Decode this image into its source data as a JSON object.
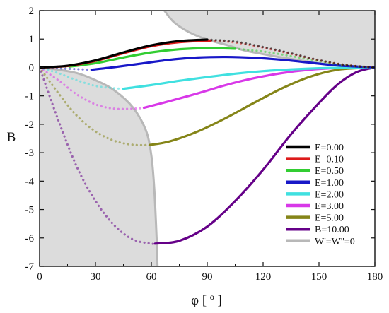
{
  "chart_data": {
    "type": "line",
    "xlabel": "φ [ º ]",
    "ylabel": "B",
    "xlim": [
      0,
      180
    ],
    "ylim": [
      -7,
      2
    ],
    "xticks": [
      0,
      30,
      60,
      90,
      120,
      150,
      180
    ],
    "yticks": [
      -7,
      -6,
      -5,
      -4,
      -3,
      -2,
      -1,
      0,
      1,
      2
    ],
    "grid": false,
    "legend_position": "lower-right",
    "shaded_regions": [
      {
        "name": "upper-right-region",
        "color": "#dcdcdc",
        "boundary": [
          [
            67,
            2
          ],
          [
            72,
            1.6
          ],
          [
            80,
            1.25
          ],
          [
            90,
            0.98
          ],
          [
            100,
            0.8
          ],
          [
            110,
            0.6
          ],
          [
            120,
            0.47
          ],
          [
            130,
            0.35
          ],
          [
            140,
            0.25
          ],
          [
            150,
            0.14
          ],
          [
            160,
            0.07
          ],
          [
            170,
            0.02
          ],
          [
            180,
            0
          ]
        ]
      },
      {
        "name": "lower-left-region",
        "color": "#dcdcdc",
        "boundary": [
          [
            0,
            0
          ],
          [
            10,
            -0.08
          ],
          [
            20,
            -0.2
          ],
          [
            30,
            -0.45
          ],
          [
            40,
            -0.8
          ],
          [
            50,
            -1.4
          ],
          [
            57,
            -2.2
          ],
          [
            60,
            -3.1
          ],
          [
            61.5,
            -4.2
          ],
          [
            62.5,
            -5.5
          ],
          [
            63,
            -6.3
          ],
          [
            63.3,
            -7
          ]
        ]
      }
    ],
    "series": [
      {
        "name": "E=0.00",
        "color": "#000000",
        "solid": [
          [
            0,
            0
          ],
          [
            15,
            0.06
          ],
          [
            30,
            0.25
          ],
          [
            45,
            0.53
          ],
          [
            60,
            0.78
          ],
          [
            75,
            0.93
          ],
          [
            90,
            0.98
          ]
        ],
        "dotted": [
          [
            90,
            0.98
          ],
          [
            105,
            0.91
          ],
          [
            120,
            0.72
          ],
          [
            135,
            0.5
          ],
          [
            150,
            0.26
          ],
          [
            165,
            0.08
          ],
          [
            180,
            0
          ]
        ]
      },
      {
        "name": "E=0.10",
        "color": "#dd1a1a",
        "solid": [
          [
            0,
            0
          ],
          [
            15,
            0.05
          ],
          [
            30,
            0.23
          ],
          [
            45,
            0.5
          ],
          [
            60,
            0.75
          ],
          [
            75,
            0.89
          ],
          [
            92,
            0.95
          ]
        ],
        "dotted": [
          [
            92,
            0.95
          ],
          [
            105,
            0.88
          ],
          [
            120,
            0.7
          ],
          [
            135,
            0.48
          ],
          [
            150,
            0.25
          ],
          [
            165,
            0.08
          ],
          [
            180,
            0
          ]
        ]
      },
      {
        "name": "E=0.50",
        "color": "#32cd32",
        "dotted": [
          [
            0,
            0
          ],
          [
            8,
            0.01
          ],
          [
            16,
            0.03
          ]
        ],
        "solid": [
          [
            16,
            0.03
          ],
          [
            30,
            0.15
          ],
          [
            45,
            0.35
          ],
          [
            60,
            0.53
          ],
          [
            75,
            0.64
          ],
          [
            90,
            0.68
          ],
          [
            105,
            0.66
          ]
        ],
        "dotted2": [
          [
            105,
            0.66
          ],
          [
            120,
            0.56
          ],
          [
            135,
            0.4
          ],
          [
            150,
            0.22
          ],
          [
            165,
            0.07
          ],
          [
            180,
            0
          ]
        ]
      },
      {
        "name": "E=1.00",
        "color": "#1818c8",
        "dotted": [
          [
            0,
            0
          ],
          [
            10,
            -0.03
          ],
          [
            20,
            -0.06
          ],
          [
            28,
            -0.08
          ]
        ],
        "solid": [
          [
            28,
            -0.08
          ],
          [
            40,
            0.01
          ],
          [
            55,
            0.14
          ],
          [
            70,
            0.27
          ],
          [
            85,
            0.35
          ],
          [
            100,
            0.37
          ],
          [
            115,
            0.34
          ],
          [
            130,
            0.27
          ],
          [
            145,
            0.17
          ],
          [
            160,
            0.07
          ],
          [
            180,
            0
          ]
        ]
      },
      {
        "name": "E=2.00",
        "color": "#40e0e0",
        "dotted": [
          [
            0,
            0
          ],
          [
            10,
            -0.2
          ],
          [
            20,
            -0.45
          ],
          [
            30,
            -0.65
          ],
          [
            40,
            -0.73
          ],
          [
            45,
            -0.75
          ]
        ],
        "solid": [
          [
            45,
            -0.75
          ],
          [
            60,
            -0.62
          ],
          [
            75,
            -0.47
          ],
          [
            90,
            -0.34
          ],
          [
            105,
            -0.22
          ],
          [
            120,
            -0.13
          ],
          [
            135,
            -0.07
          ],
          [
            150,
            -0.03
          ],
          [
            165,
            -0.01
          ],
          [
            180,
            0
          ]
        ]
      },
      {
        "name": "E=3.00",
        "color": "#d838e8",
        "dotted": [
          [
            0,
            0
          ],
          [
            10,
            -0.45
          ],
          [
            20,
            -0.95
          ],
          [
            30,
            -1.3
          ],
          [
            40,
            -1.45
          ],
          [
            50,
            -1.45
          ],
          [
            56,
            -1.42
          ]
        ],
        "solid": [
          [
            56,
            -1.42
          ],
          [
            70,
            -1.18
          ],
          [
            85,
            -0.91
          ],
          [
            100,
            -0.62
          ],
          [
            115,
            -0.38
          ],
          [
            130,
            -0.2
          ],
          [
            145,
            -0.08
          ],
          [
            160,
            -0.02
          ],
          [
            180,
            0
          ]
        ]
      },
      {
        "name": "E=5.00",
        "color": "#858518",
        "dotted": [
          [
            0,
            0
          ],
          [
            10,
            -0.9
          ],
          [
            20,
            -1.7
          ],
          [
            30,
            -2.25
          ],
          [
            40,
            -2.58
          ],
          [
            50,
            -2.72
          ],
          [
            59,
            -2.73
          ]
        ],
        "solid": [
          [
            59,
            -2.73
          ],
          [
            70,
            -2.6
          ],
          [
            85,
            -2.25
          ],
          [
            100,
            -1.78
          ],
          [
            115,
            -1.25
          ],
          [
            130,
            -0.74
          ],
          [
            145,
            -0.33
          ],
          [
            160,
            -0.08
          ],
          [
            175,
            -0.01
          ],
          [
            180,
            0
          ]
        ]
      },
      {
        "name": "B=10.00",
        "color": "#650088",
        "dotted": [
          [
            0,
            0
          ],
          [
            10,
            -1.85
          ],
          [
            20,
            -3.5
          ],
          [
            30,
            -4.7
          ],
          [
            40,
            -5.55
          ],
          [
            50,
            -6.05
          ],
          [
            60,
            -6.2
          ],
          [
            62,
            -6.2
          ]
        ],
        "solid": [
          [
            62,
            -6.2
          ],
          [
            75,
            -6.1
          ],
          [
            90,
            -5.6
          ],
          [
            105,
            -4.7
          ],
          [
            120,
            -3.6
          ],
          [
            135,
            -2.35
          ],
          [
            150,
            -1.25
          ],
          [
            160,
            -0.6
          ],
          [
            170,
            -0.17
          ],
          [
            180,
            0
          ]
        ]
      },
      {
        "name": "W'=W''=0",
        "color": "#b8b8b8",
        "boundary_upper": true,
        "boundary_lower": true
      }
    ]
  }
}
